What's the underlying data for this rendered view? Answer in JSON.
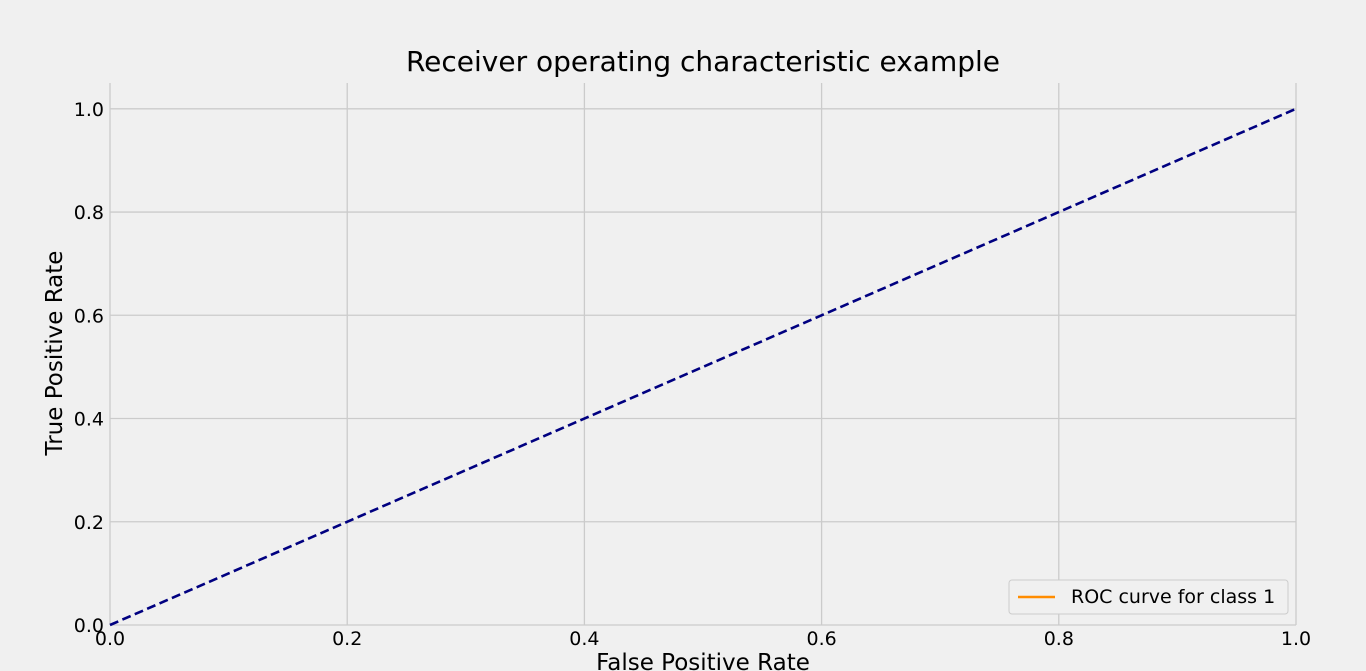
{
  "chart_data": {
    "type": "line",
    "title": "Receiver operating characteristic example",
    "xlabel": "False Positive Rate",
    "ylabel": "True Positive Rate",
    "xlim": [
      0.0,
      1.0
    ],
    "ylim": [
      0.0,
      1.05
    ],
    "xticks": [
      "0.0",
      "0.2",
      "0.4",
      "0.6",
      "0.8",
      "1.0"
    ],
    "yticks": [
      "0.0",
      "0.2",
      "0.4",
      "0.6",
      "0.8",
      "1.0"
    ],
    "grid": true,
    "legend_position": "lower-right",
    "series": [
      {
        "name": "ROC curve for class 1",
        "color": "#ff8c00",
        "style": "solid",
        "x": [],
        "y": []
      },
      {
        "color": "#000080",
        "style": "dashed",
        "x": [
          0.0,
          1.0
        ],
        "y": [
          0.0,
          1.0
        ]
      }
    ],
    "colors": {
      "background": "#f0f0f0",
      "grid": "#cbcbcb"
    }
  }
}
